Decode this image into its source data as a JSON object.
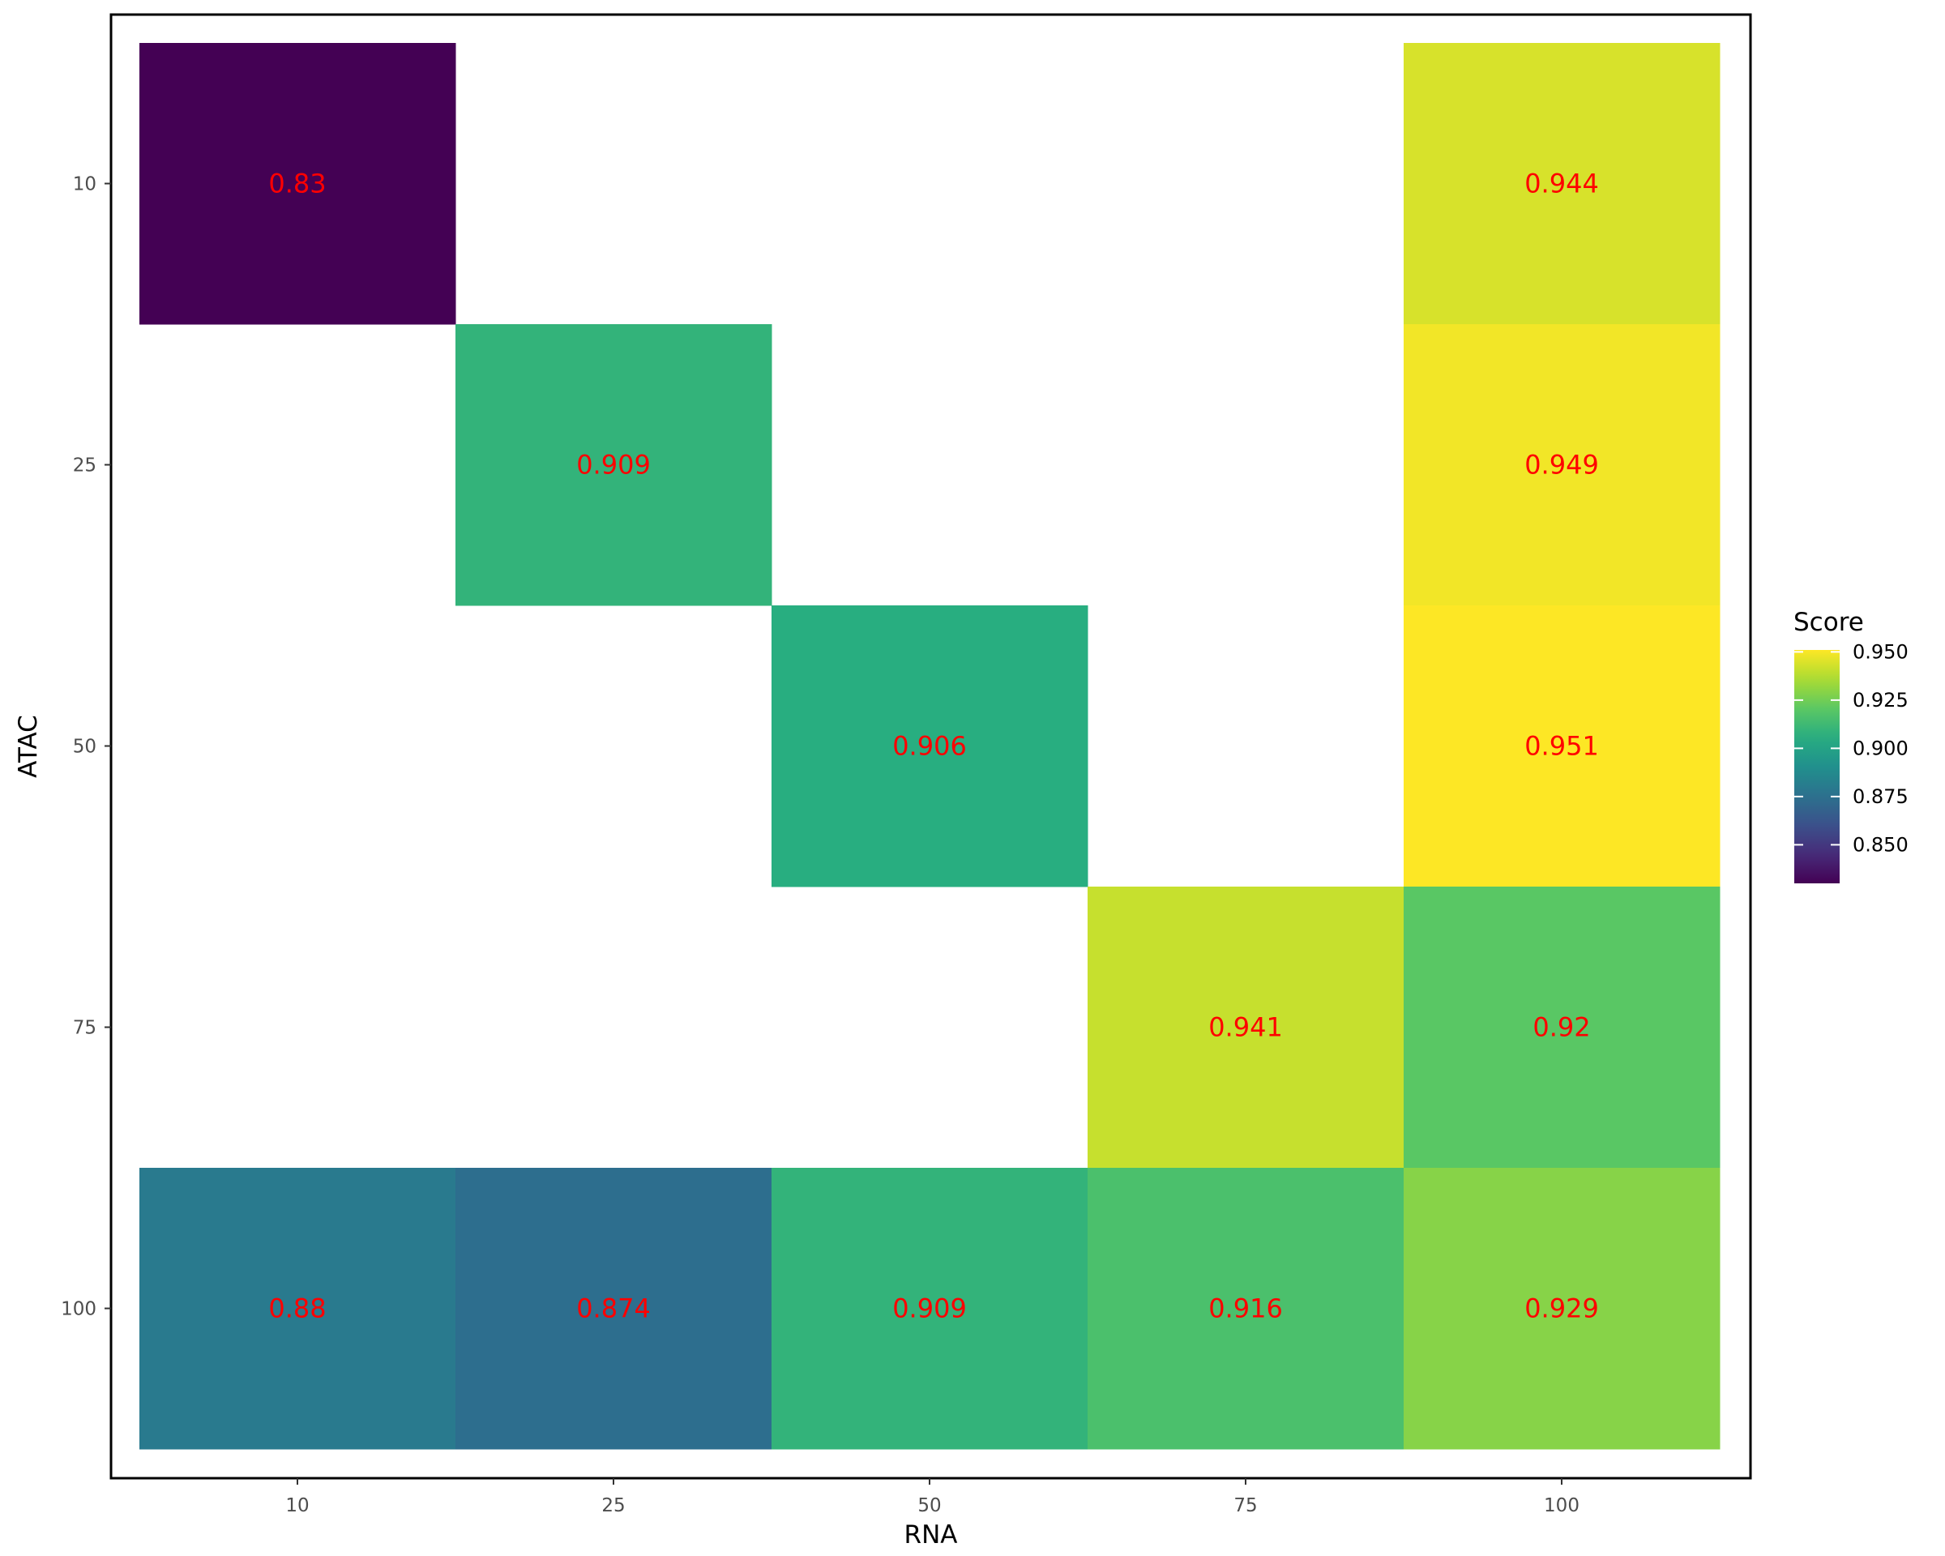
{
  "chart_data": {
    "type": "heatmap",
    "xlabel": "RNA",
    "ylabel": "ATAC",
    "x_categories": [
      "10",
      "25",
      "50",
      "75",
      "100"
    ],
    "y_categories": [
      "10",
      "25",
      "50",
      "75",
      "100"
    ],
    "cells": [
      {
        "x": "10",
        "y": "10",
        "value": 0.83,
        "label": "0.83"
      },
      {
        "x": "100",
        "y": "10",
        "value": 0.944,
        "label": "0.944"
      },
      {
        "x": "25",
        "y": "25",
        "value": 0.909,
        "label": "0.909"
      },
      {
        "x": "100",
        "y": "25",
        "value": 0.949,
        "label": "0.949"
      },
      {
        "x": "50",
        "y": "50",
        "value": 0.906,
        "label": "0.906"
      },
      {
        "x": "100",
        "y": "50",
        "value": 0.951,
        "label": "0.951"
      },
      {
        "x": "75",
        "y": "75",
        "value": 0.941,
        "label": "0.941"
      },
      {
        "x": "100",
        "y": "75",
        "value": 0.92,
        "label": "0.92"
      },
      {
        "x": "10",
        "y": "100",
        "value": 0.88,
        "label": "0.88"
      },
      {
        "x": "25",
        "y": "100",
        "value": 0.874,
        "label": "0.874"
      },
      {
        "x": "50",
        "y": "100",
        "value": 0.909,
        "label": "0.909"
      },
      {
        "x": "75",
        "y": "100",
        "value": 0.916,
        "label": "0.916"
      },
      {
        "x": "100",
        "y": "100",
        "value": 0.929,
        "label": "0.929"
      }
    ],
    "legend": {
      "title": "Score",
      "position": "right",
      "range": [
        0.83,
        0.951
      ],
      "ticks": [
        0.85,
        0.875,
        0.9,
        0.925,
        0.95
      ],
      "tick_labels": [
        "0.850",
        "0.875",
        "0.900",
        "0.925",
        "0.950"
      ]
    },
    "colorscale": "viridis",
    "cell_label_color": "#ff0000",
    "grid": false
  }
}
